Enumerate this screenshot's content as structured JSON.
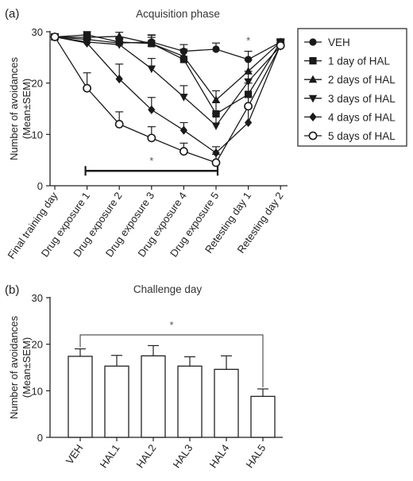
{
  "chart_data": [
    {
      "panel": "(a)",
      "type": "line",
      "title": "Acquisition phase",
      "ylabel": [
        "Number of avoidances",
        "(Mean±SEM)"
      ],
      "ylim": [
        0,
        30
      ],
      "yticks": [
        0,
        10,
        20,
        30
      ],
      "categories": [
        "Final training day",
        "Drug exposure 1",
        "Drug exposure 2",
        "Drug exposure 3",
        "Drug exposure 4",
        "Drug exposure 5",
        "Retesting day 1",
        "Retesting day 2"
      ],
      "legend": {
        "position": "right"
      },
      "series": [
        {
          "name": "VEH",
          "marker": "circle",
          "values": [
            29,
            28.5,
            27.8,
            28,
            26.2,
            26.6,
            24.6,
            28
          ],
          "err": [
            0.6,
            0.7,
            0.9,
            1.4,
            1.3,
            1.2,
            1.6,
            0.5
          ]
        },
        {
          "name": "1 day of HAL",
          "marker": "square",
          "values": [
            29,
            29.4,
            28,
            27.7,
            24.6,
            14,
            17.8,
            28
          ],
          "err": [
            0.5,
            0.6,
            0.9,
            1.2,
            1.7,
            2.2,
            2.2,
            0.6
          ]
        },
        {
          "name": "2 days of HAL",
          "marker": "triangle-up",
          "values": [
            29,
            28.9,
            29.1,
            27.7,
            25.2,
            16.7,
            22.3,
            28
          ],
          "err": [
            0.5,
            0.6,
            0.8,
            1.6,
            1.4,
            1.8,
            2.2,
            0.6
          ]
        },
        {
          "name": "3 days of HAL",
          "marker": "triangle-down",
          "values": [
            29,
            28,
            27.5,
            22.8,
            17.3,
            11.7,
            20.3,
            27.2
          ],
          "err": [
            0.5,
            0.8,
            1.2,
            2.0,
            2.2,
            2.4,
            2.0,
            0.7
          ]
        },
        {
          "name": "4 days of HAL",
          "marker": "diamond",
          "values": [
            29,
            27.8,
            20.8,
            14.8,
            10.8,
            6.4,
            12.3,
            27.5
          ],
          "err": [
            0.5,
            0.8,
            2.9,
            2.4,
            1.5,
            1.2,
            2.8,
            0.8
          ]
        },
        {
          "name": "5 days of HAL",
          "marker": "open-circle",
          "values": [
            29,
            19,
            12,
            9.3,
            6.7,
            4.5,
            15.5,
            27.3
          ],
          "err": [
            0.5,
            3.0,
            2.4,
            2.2,
            1.6,
            1.6,
            1.9,
            1.0
          ]
        }
      ],
      "annotations": [
        {
          "text": "*",
          "target": "Retesting day 1"
        },
        {
          "text": "*",
          "target": "bracket Drug exposure 1 to Drug exposure 5"
        }
      ],
      "bracket": {
        "from": "Drug exposure 1",
        "to": "Drug exposure 5",
        "y": 2.9,
        "label": "*"
      }
    },
    {
      "panel": "(b)",
      "type": "bar",
      "title": "Challenge day",
      "ylabel": [
        "Number of avoidances",
        "(Mean±SEM)"
      ],
      "ylim": [
        0,
        30
      ],
      "yticks": [
        0,
        10,
        20,
        30
      ],
      "categories": [
        "VEH",
        "HAL1",
        "HAL2",
        "HAL3",
        "HAL4",
        "HAL5"
      ],
      "values": [
        17.4,
        15.3,
        17.5,
        15.3,
        14.6,
        8.8
      ],
      "err": [
        1.6,
        2.3,
        2.2,
        2.0,
        2.9,
        1.6
      ],
      "bracket": {
        "from": "VEH",
        "to": "HAL5",
        "y": 22,
        "label": "*"
      }
    }
  ]
}
